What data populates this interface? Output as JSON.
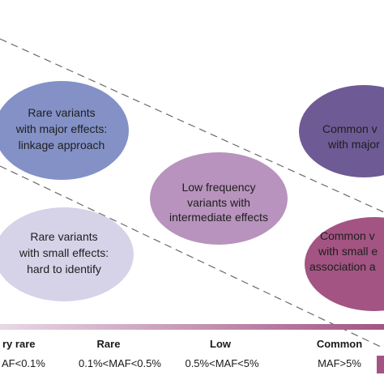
{
  "bubbles": [
    {
      "lines": [
        "Rare variants",
        "with major effects:",
        "linkage approach"
      ],
      "color": "#8391c6"
    },
    {
      "lines": [
        "Low frequency",
        "variants with",
        "intermediate effects"
      ],
      "color": "#b893bd"
    },
    {
      "lines": [
        "Common v",
        "with major"
      ],
      "color": "#6e5a94"
    },
    {
      "lines": [
        "Rare variants",
        "with small effects:",
        "hard to identify"
      ],
      "color": "#d6d2e8"
    },
    {
      "lines": [
        "Common v",
        "with small e",
        "association a"
      ],
      "color": "#a35483"
    }
  ],
  "frequency_scale": {
    "categories": [
      {
        "label": "ry rare",
        "range": "AF<0.1%"
      },
      {
        "label": "Rare",
        "range": "0.1%<MAF<0.5%"
      },
      {
        "label": "Low",
        "range": "0.5%<MAF<5%"
      },
      {
        "label": "Common",
        "range": "MAF>5%"
      }
    ],
    "gradient_start": "#e8d8e6",
    "gradient_end": "#a35483"
  },
  "colors": {
    "dashed_line": "#6a6a6a",
    "legend_swatch": "#a35483"
  }
}
